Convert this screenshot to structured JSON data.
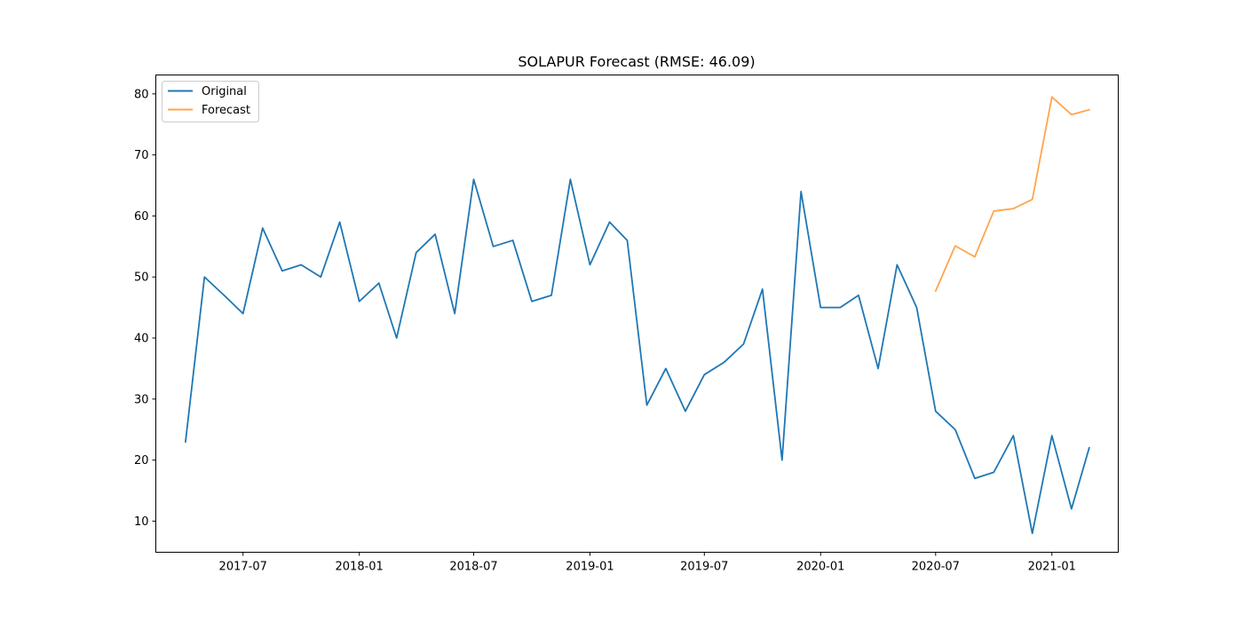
{
  "chart_data": {
    "type": "line",
    "title": "SOLAPUR Forecast (RMSE: 46.09)",
    "xlabel": "",
    "ylabel": "",
    "x_range": [
      "2017-02-13",
      "2021-04-16"
    ],
    "ylim": [
      4.9,
      83.1
    ],
    "x_ticks": [
      "2017-07",
      "2018-01",
      "2018-07",
      "2019-01",
      "2019-07",
      "2020-01",
      "2020-07",
      "2021-01"
    ],
    "y_ticks": [
      10,
      20,
      30,
      40,
      50,
      60,
      70,
      80
    ],
    "grid": false,
    "legend_position": "top-left",
    "series": [
      {
        "name": "Original",
        "color": "#1f77b4",
        "points": [
          [
            "2017-04-01",
            23
          ],
          [
            "2017-05-01",
            50
          ],
          [
            "2017-06-01",
            47
          ],
          [
            "2017-07-01",
            44
          ],
          [
            "2017-08-01",
            58
          ],
          [
            "2017-09-01",
            51
          ],
          [
            "2017-10-01",
            52
          ],
          [
            "2017-11-01",
            50
          ],
          [
            "2017-12-01",
            59
          ],
          [
            "2018-01-01",
            46
          ],
          [
            "2018-02-01",
            49
          ],
          [
            "2018-03-01",
            40
          ],
          [
            "2018-04-01",
            54
          ],
          [
            "2018-05-01",
            57
          ],
          [
            "2018-06-01",
            44
          ],
          [
            "2018-07-01",
            66
          ],
          [
            "2018-08-01",
            55
          ],
          [
            "2018-09-01",
            56
          ],
          [
            "2018-10-01",
            46
          ],
          [
            "2018-11-01",
            47
          ],
          [
            "2018-12-01",
            66
          ],
          [
            "2019-01-01",
            52
          ],
          [
            "2019-02-01",
            59
          ],
          [
            "2019-03-01",
            56
          ],
          [
            "2019-04-01",
            29
          ],
          [
            "2019-05-01",
            35
          ],
          [
            "2019-06-01",
            28
          ],
          [
            "2019-07-01",
            34
          ],
          [
            "2019-08-01",
            36
          ],
          [
            "2019-09-01",
            39
          ],
          [
            "2019-10-01",
            48
          ],
          [
            "2019-11-01",
            20
          ],
          [
            "2019-12-01",
            64
          ],
          [
            "2020-01-01",
            45
          ],
          [
            "2020-02-01",
            45
          ],
          [
            "2020-03-01",
            47
          ],
          [
            "2020-04-01",
            35
          ],
          [
            "2020-05-01",
            52
          ],
          [
            "2020-06-01",
            45
          ],
          [
            "2020-07-01",
            28
          ],
          [
            "2020-08-01",
            25
          ],
          [
            "2020-09-01",
            17
          ],
          [
            "2020-10-01",
            18
          ],
          [
            "2020-11-01",
            24
          ],
          [
            "2020-12-01",
            8
          ],
          [
            "2021-01-01",
            24
          ],
          [
            "2021-02-01",
            12
          ],
          [
            "2021-03-01",
            22
          ]
        ]
      },
      {
        "name": "Forecast",
        "color": "#ffa54f",
        "points": [
          [
            "2020-07-01",
            47.7
          ],
          [
            "2020-08-01",
            55.1
          ],
          [
            "2020-09-01",
            53.3
          ],
          [
            "2020-10-01",
            60.8
          ],
          [
            "2020-11-01",
            61.2
          ],
          [
            "2020-12-01",
            62.7
          ],
          [
            "2021-01-01",
            79.5
          ],
          [
            "2021-02-01",
            76.6
          ],
          [
            "2021-03-01",
            77.4
          ]
        ]
      }
    ]
  }
}
